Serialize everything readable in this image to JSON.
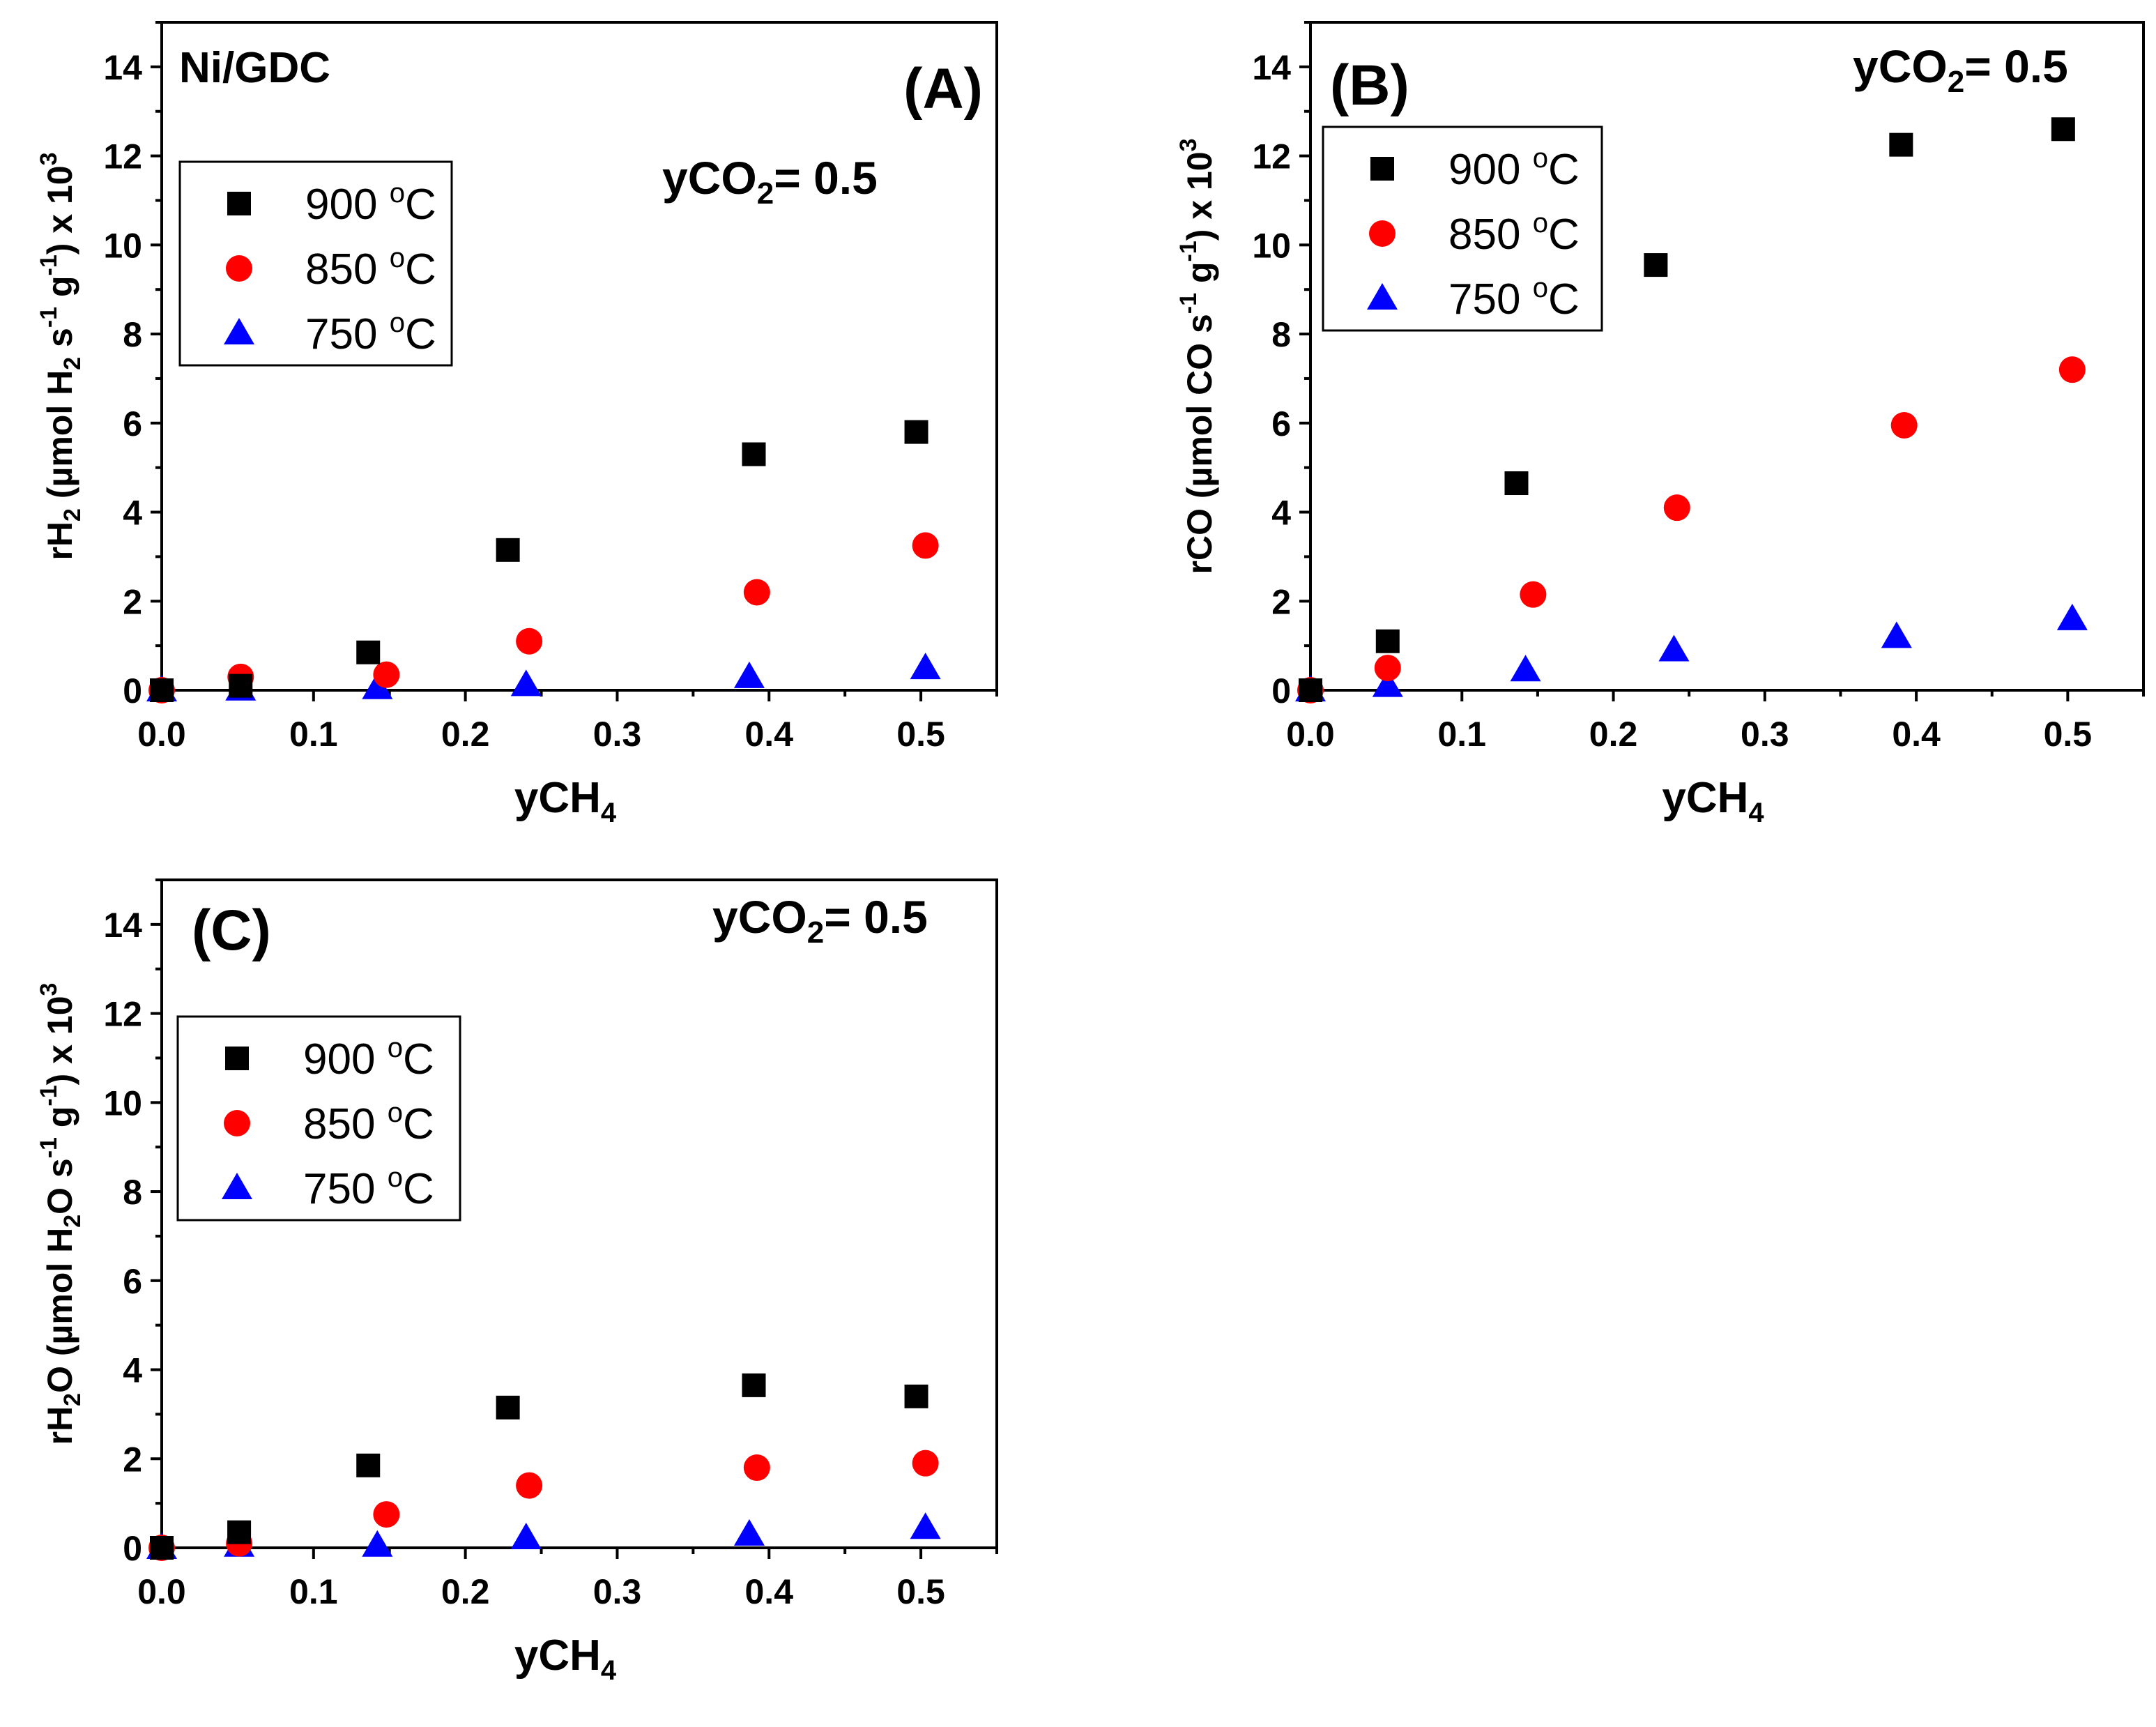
{
  "figure": {
    "sample_label": "Ni/GDC",
    "condition_label": "yCO",
    "condition_sub": "2",
    "condition_value": "= 0.5",
    "deg_unit": "o",
    "temp_unit": "C"
  },
  "colors": {
    "900": "#000000",
    "850": "#ff0000",
    "750": "#0000ff",
    "axes": "#000000"
  },
  "chart_data": [
    {
      "id": "A",
      "type": "scatter",
      "panel_label": "(A)",
      "xlabel": {
        "main": "yCH",
        "sub": "4"
      },
      "ylabel": {
        "p1": "rH",
        "s1": "2",
        "p2": " (µmol H",
        "s2": "2",
        "p3": " s",
        "s3": "-1",
        "p4": " g",
        "s4": "-1",
        "p5": ") x 10",
        "s5": "3"
      },
      "xlim": [
        0,
        0.55
      ],
      "ylim": [
        0,
        15
      ],
      "xticks": [
        0.0,
        0.1,
        0.2,
        0.3,
        0.4,
        0.5
      ],
      "xtick_labels": [
        "0.0",
        "0.1",
        "0.2",
        "0.3",
        "0.4",
        "0.5"
      ],
      "yticks": [
        0,
        2,
        4,
        6,
        8,
        10,
        12,
        14
      ],
      "ytick_labels": [
        "0",
        "2",
        "4",
        "6",
        "8",
        "10",
        "12",
        "14"
      ],
      "legend": [
        "900",
        "850",
        "750"
      ],
      "series": [
        {
          "name": "900",
          "marker": "square",
          "x": [
            0.0,
            0.052,
            0.136,
            0.228,
            0.39,
            0.497
          ],
          "y": [
            0.0,
            0.1,
            0.85,
            3.15,
            5.3,
            5.8
          ]
        },
        {
          "name": "850",
          "marker": "circle",
          "x": [
            0.0,
            0.052,
            0.148,
            0.242,
            0.392,
            0.503
          ],
          "y": [
            0.0,
            0.3,
            0.35,
            1.1,
            2.2,
            3.25
          ]
        },
        {
          "name": "750",
          "marker": "triangle",
          "x": [
            0.0,
            0.052,
            0.142,
            0.24,
            0.387,
            0.503
          ],
          "y": [
            0.0,
            0.02,
            0.05,
            0.12,
            0.3,
            0.5
          ]
        }
      ]
    },
    {
      "id": "B",
      "type": "scatter",
      "panel_label": "(B)",
      "xlabel": {
        "main": "yCH",
        "sub": "4"
      },
      "ylabel": {
        "p1": "rCO",
        "s1": "",
        "p2": " (µmol CO",
        "s2": "",
        "p3": " s",
        "s3": "-1",
        "p4": " g",
        "s4": "-1",
        "p5": ") x 10",
        "s5": "3"
      },
      "xlim": [
        0,
        0.55
      ],
      "ylim": [
        0,
        15
      ],
      "xticks": [
        0.0,
        0.1,
        0.2,
        0.3,
        0.4,
        0.5
      ],
      "xtick_labels": [
        "0.0",
        "0.1",
        "0.2",
        "0.3",
        "0.4",
        "0.5"
      ],
      "yticks": [
        0,
        2,
        4,
        6,
        8,
        10,
        12,
        14
      ],
      "ytick_labels": [
        "0",
        "2",
        "4",
        "6",
        "8",
        "10",
        "12",
        "14"
      ],
      "legend": [
        "900",
        "850",
        "750"
      ],
      "series": [
        {
          "name": "900",
          "marker": "square",
          "x": [
            0.0,
            0.051,
            0.136,
            0.228,
            0.39,
            0.497
          ],
          "y": [
            0.0,
            1.1,
            4.65,
            9.55,
            12.25,
            12.6
          ]
        },
        {
          "name": "850",
          "marker": "circle",
          "x": [
            0.0,
            0.051,
            0.147,
            0.242,
            0.392,
            0.503
          ],
          "y": [
            0.0,
            0.5,
            2.15,
            4.1,
            5.95,
            7.2
          ]
        },
        {
          "name": "750",
          "marker": "triangle",
          "x": [
            0.0,
            0.051,
            0.142,
            0.24,
            0.387,
            0.503
          ],
          "y": [
            0.0,
            0.1,
            0.45,
            0.9,
            1.2,
            1.6
          ]
        }
      ]
    },
    {
      "id": "C",
      "type": "scatter",
      "panel_label": "(C)",
      "xlabel": {
        "main": "yCH",
        "sub": "4"
      },
      "ylabel": {
        "p1": "rH",
        "s1": "2",
        "p2": "O (µmol H",
        "s2": "2",
        "p3": "O s",
        "s3": "-1",
        "p4": " g",
        "s4": "-1",
        "p5": ") x 10",
        "s5": "3"
      },
      "xlim": [
        0,
        0.55
      ],
      "ylim": [
        0,
        15
      ],
      "xticks": [
        0.0,
        0.1,
        0.2,
        0.3,
        0.4,
        0.5
      ],
      "xtick_labels": [
        "0.0",
        "0.1",
        "0.2",
        "0.3",
        "0.4",
        "0.5"
      ],
      "yticks": [
        0,
        2,
        4,
        6,
        8,
        10,
        12,
        14
      ],
      "ytick_labels": [
        "0",
        "2",
        "4",
        "6",
        "8",
        "10",
        "12",
        "14"
      ],
      "legend": [
        "900",
        "850",
        "750"
      ],
      "series": [
        {
          "name": "900",
          "marker": "square",
          "x": [
            0.0,
            0.051,
            0.136,
            0.228,
            0.39,
            0.497
          ],
          "y": [
            0.0,
            0.35,
            1.85,
            3.15,
            3.65,
            3.4
          ]
        },
        {
          "name": "850",
          "marker": "circle",
          "x": [
            0.0,
            0.051,
            0.148,
            0.242,
            0.392,
            0.503
          ],
          "y": [
            0.0,
            0.1,
            0.75,
            1.4,
            1.8,
            1.9
          ]
        },
        {
          "name": "750",
          "marker": "triangle",
          "x": [
            0.0,
            0.051,
            0.142,
            0.24,
            0.387,
            0.503
          ],
          "y": [
            0.0,
            0.05,
            0.05,
            0.22,
            0.3,
            0.45
          ]
        }
      ]
    }
  ]
}
